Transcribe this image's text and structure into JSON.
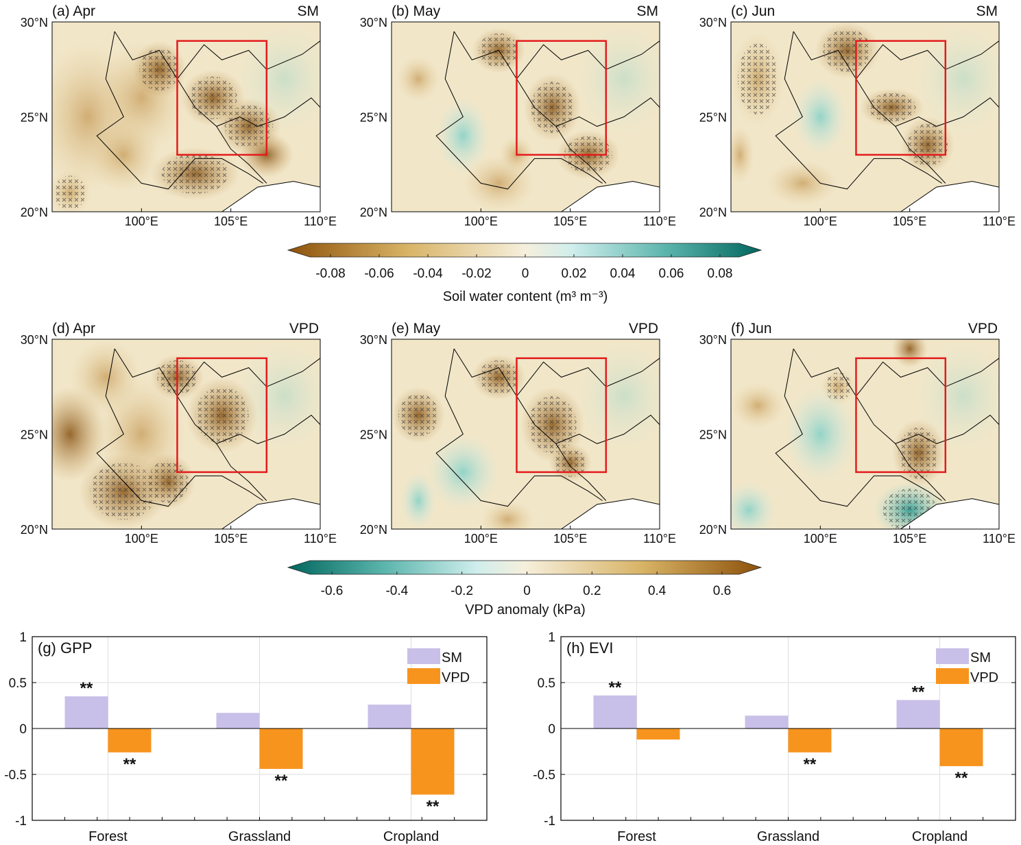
{
  "maps": {
    "lon_ticks": [
      "100°E",
      "105°E",
      "110°E"
    ],
    "lat_ticks": [
      "30°N",
      "25°N",
      "20°N"
    ],
    "region_box": {
      "lon": [
        102,
        107
      ],
      "lat": [
        23,
        29
      ],
      "color": "#e41a1c"
    },
    "panels": [
      {
        "label": "(a) Apr",
        "var": "SM"
      },
      {
        "label": "(b) May",
        "var": "SM"
      },
      {
        "label": "(c) Jun",
        "var": "SM"
      },
      {
        "label": "(d) Apr",
        "var": "VPD"
      },
      {
        "label": "(e) May",
        "var": "VPD"
      },
      {
        "label": "(f) Jun",
        "var": "VPD"
      }
    ]
  },
  "colorbars": [
    {
      "ticks": [
        "-0.08",
        "-0.06",
        "-0.04",
        "-0.02",
        "0",
        "0.02",
        "0.04",
        "0.06",
        "0.08"
      ],
      "label": "Soil water content (m³ m⁻³)",
      "low_color": "#8c510a",
      "high_color": "#01665e"
    },
    {
      "ticks": [
        "-0.6",
        "-0.4",
        "-0.2",
        "0",
        "0.2",
        "0.4",
        "0.6"
      ],
      "label": "VPD anomaly (kPa)",
      "low_color": "#01665e",
      "high_color": "#8c510a"
    }
  ],
  "chart_data": [
    {
      "type": "bar",
      "title": "(g) GPP",
      "categories": [
        "Forest",
        "Grassland",
        "Cropland"
      ],
      "ylim": [
        -1,
        1
      ],
      "yticks": [
        "1",
        "0.5",
        "0",
        "-0.5",
        "-1"
      ],
      "grid": true,
      "legend": "top-right",
      "series": [
        {
          "name": "SM",
          "color": "#c8c0e8",
          "values": [
            0.35,
            0.17,
            0.26
          ],
          "signif": [
            "**",
            "",
            ""
          ]
        },
        {
          "name": "VPD",
          "color": "#f7941d",
          "values": [
            -0.26,
            -0.44,
            -0.72
          ],
          "signif": [
            "**",
            "**",
            "**"
          ]
        }
      ]
    },
    {
      "type": "bar",
      "title": "(h) EVI",
      "categories": [
        "Forest",
        "Grassland",
        "Cropland"
      ],
      "ylim": [
        -1,
        1
      ],
      "yticks": [
        "1",
        "0.5",
        "0",
        "-0.5",
        "-1"
      ],
      "grid": true,
      "legend": "top-right",
      "series": [
        {
          "name": "SM",
          "color": "#c8c0e8",
          "values": [
            0.36,
            0.14,
            0.31
          ],
          "signif": [
            "**",
            "",
            "**"
          ]
        },
        {
          "name": "VPD",
          "color": "#f7941d",
          "values": [
            -0.12,
            -0.26,
            -0.41
          ],
          "signif": [
            "",
            "**",
            "**"
          ]
        }
      ]
    }
  ]
}
